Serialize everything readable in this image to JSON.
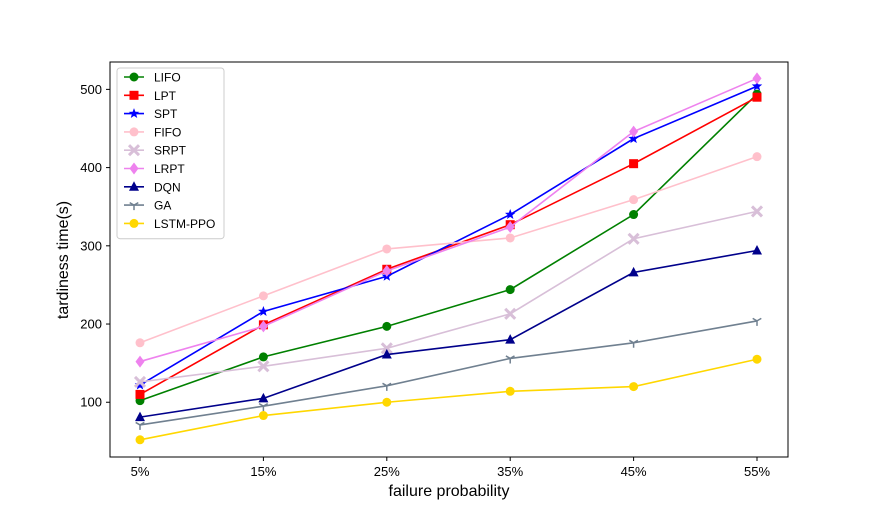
{
  "chart_data": {
    "type": "line",
    "xlabel": "failure probability",
    "ylabel": "tardiness time(s)",
    "categories": [
      "5%",
      "15%",
      "25%",
      "35%",
      "45%",
      "55%"
    ],
    "ylim": [
      30,
      535
    ],
    "yticks": [
      100,
      200,
      300,
      400,
      500
    ],
    "grid": false,
    "legend_position": "top-left",
    "series": [
      {
        "name": "LIFO",
        "color": "#008000",
        "marker": "circle",
        "values": [
          102,
          158,
          197,
          244,
          340,
          494
        ]
      },
      {
        "name": "LPT",
        "color": "#ff0000",
        "marker": "square",
        "values": [
          110,
          199,
          270,
          327,
          405,
          490
        ]
      },
      {
        "name": "SPT",
        "color": "#0000ff",
        "marker": "star",
        "values": [
          122,
          216,
          261,
          340,
          437,
          504
        ]
      },
      {
        "name": "FIFO",
        "color": "#ffc0cb",
        "marker": "circle",
        "values": [
          176,
          236,
          296,
          310,
          359,
          414
        ]
      },
      {
        "name": "SRPT",
        "color": "#d8bfd8",
        "marker": "x",
        "values": [
          126,
          146,
          169,
          213,
          309,
          344
        ]
      },
      {
        "name": "LRPT",
        "color": "#ee82ee",
        "marker": "diamond",
        "values": [
          152,
          197,
          268,
          324,
          446,
          514
        ]
      },
      {
        "name": "DQN",
        "color": "#00008b",
        "marker": "triangle",
        "values": [
          81,
          105,
          161,
          180,
          266,
          294
        ]
      },
      {
        "name": "GA",
        "color": "#708090",
        "marker": "tri_down",
        "values": [
          71,
          95,
          121,
          156,
          176,
          204
        ]
      },
      {
        "name": "LSTM-PPO",
        "color": "#ffd700",
        "marker": "circle",
        "values": [
          52,
          83,
          100,
          114,
          120,
          155
        ]
      }
    ]
  }
}
